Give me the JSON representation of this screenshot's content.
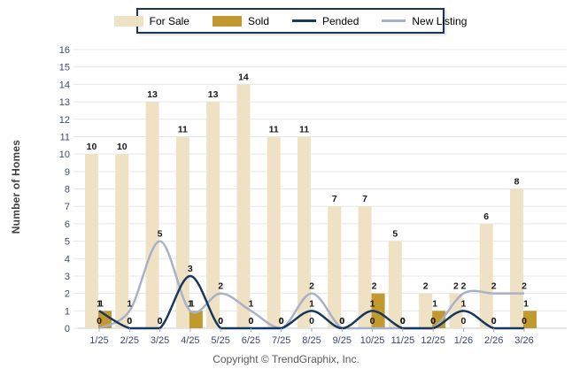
{
  "ylabel": "Number of Homes",
  "copyright": "Copyright © TrendGraphix, Inc.",
  "colors": {
    "for_sale": "#EFE2C4",
    "sold": "#C2992F",
    "pended": "#17375E",
    "new_listing": "#A9B1C7",
    "grid": "#E7E7E7",
    "axis": "#C3C8D2",
    "tick": "#A9B1C7",
    "value_label": "#1A1A1A",
    "axis_label": "#3B4A6B",
    "legend_border": "#17375E"
  },
  "legend": {
    "items": [
      {
        "label": "For Sale",
        "type": "box",
        "color": "#EFE2C4"
      },
      {
        "label": "Sold",
        "type": "box",
        "color": "#C2992F"
      },
      {
        "label": "Pended",
        "type": "line",
        "color": "#17375E"
      },
      {
        "label": "New Listing",
        "type": "line",
        "color": "#A9B1C7"
      }
    ]
  },
  "chart_data": {
    "type": "bar",
    "subtype": "grouped bars with smoothed overlay lines",
    "title": "",
    "xlabel": "",
    "ylabel": "Number of Homes",
    "ylim": [
      0,
      16
    ],
    "ytick_step": 1,
    "grid": true,
    "legend_position": "top",
    "categories": [
      "1/25",
      "2/25",
      "3/25",
      "4/25",
      "5/25",
      "6/25",
      "7/25",
      "8/25",
      "9/25",
      "10/25",
      "11/25",
      "12/25",
      "1/26",
      "2/26",
      "3/26"
    ],
    "series": [
      {
        "name": "For Sale",
        "type": "bar",
        "color": "#EFE2C4",
        "values": [
          10,
          10,
          13,
          11,
          13,
          14,
          11,
          11,
          7,
          7,
          5,
          2,
          2,
          6,
          8
        ]
      },
      {
        "name": "Sold",
        "type": "bar",
        "color": "#C2992F",
        "values": [
          1,
          0,
          0,
          1,
          0,
          0,
          0,
          0,
          0,
          2,
          0,
          1,
          0,
          0,
          1
        ]
      },
      {
        "name": "Pended",
        "type": "line",
        "color": "#17375E",
        "values": [
          1,
          0,
          0,
          3,
          0,
          0,
          0,
          1,
          0,
          1,
          0,
          0,
          1,
          0,
          0
        ]
      },
      {
        "name": "New Listing",
        "type": "line",
        "color": "#A9B1C7",
        "values": [
          0,
          1,
          5,
          1,
          2,
          1,
          0,
          2,
          0,
          0,
          0,
          0,
          2,
          2,
          2
        ]
      }
    ]
  }
}
